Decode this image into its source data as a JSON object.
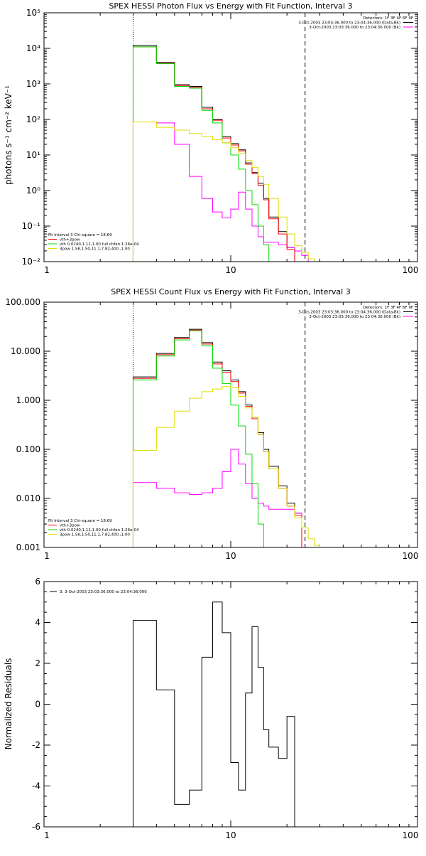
{
  "chart_data": [
    {
      "type": "line",
      "title": "SPEX HESSI Photon Flux vs Energy with Fit Function, Interval 3",
      "xlabel": "",
      "ylabel": "photons s⁻¹ cm⁻² keV⁻¹",
      "xscale": "log",
      "yscale": "log",
      "xlim": [
        1,
        100
      ],
      "ylim": [
        0.01,
        100000
      ],
      "x_ticks": [
        1,
        10,
        100
      ],
      "x_tick_labels": [
        "1",
        "10",
        "100"
      ],
      "y_ticks": [
        0.01,
        0.1,
        1,
        10,
        100,
        1000,
        10000,
        100000
      ],
      "y_tick_labels": [
        "10⁻²",
        "10⁻¹",
        "10⁰",
        "10¹",
        "10²",
        "10³",
        "10⁴",
        "10⁵"
      ],
      "vlines": [
        {
          "x": 3,
          "style": "dotted"
        },
        {
          "x": 25,
          "style": "dashed"
        }
      ],
      "legend_top_right": {
        "detectors": "Detectors: 1F 3F 4F 6F 9F",
        "entries": [
          {
            "text": "3-Oct-2003 23:03:36.000 to 23:04:36.000 (Data-Bk)",
            "color": "#000000"
          },
          {
            "text": "3-Oct-2003 23:03:36.000 to 23:04:36.000 (Bk)",
            "color": "#ff00ff"
          }
        ]
      },
      "legend_bottom_left": {
        "header": "Fit Interval 3   Chi-square = 18.69",
        "entries": [
          {
            "text": "vth+3pow",
            "color": "#ff0000"
          },
          {
            "text": "vth 0.0240,1.11,1.00  full chfan 1.26e-04",
            "color": "#00dd00"
          },
          {
            "text": "3pow 1.58,1.50,11.1,7.82,400.,1.00",
            "color": "#dddd00"
          }
        ]
      },
      "edges": [
        3.0,
        4.0,
        5.0,
        6.0,
        7.0,
        8.0,
        9.0,
        10.0,
        11.0,
        12.0,
        13.0,
        14.0,
        15.0,
        16.0,
        18.0,
        20.0,
        22.0,
        24.0,
        26.0,
        28.0,
        30.0
      ],
      "series": [
        {
          "name": "Data-Bk",
          "color": "#000000",
          "values": [
            12000,
            4000,
            950,
            850,
            220,
            100,
            33,
            21,
            14,
            6,
            3.2,
            1.6,
            0.6,
            0.18,
            0.07,
            0.025,
            null,
            null,
            null,
            null
          ]
        },
        {
          "name": "Bk",
          "color": "#ff00ff",
          "values": [
            85,
            80,
            20,
            2.5,
            0.6,
            0.25,
            0.17,
            0.3,
            0.9,
            0.3,
            0.1,
            0.05,
            0.035,
            0.035,
            0.03,
            0.025,
            0.02,
            0.015,
            null,
            null
          ]
        },
        {
          "name": "vth+3pow",
          "color": "#ff0000",
          "values": [
            11000,
            3800,
            900,
            800,
            200,
            95,
            30,
            19,
            13,
            5.5,
            3.0,
            1.4,
            0.55,
            0.16,
            0.06,
            0.022,
            null,
            null,
            null,
            null
          ]
        },
        {
          "name": "vth",
          "color": "#00dd00",
          "values": [
            11000,
            3700,
            850,
            760,
            180,
            80,
            22,
            10,
            4,
            1,
            0.4,
            0.1,
            0.03,
            0.008,
            null,
            null,
            null,
            null,
            null,
            null
          ]
        },
        {
          "name": "3pow",
          "color": "#dddd00",
          "values": [
            85,
            60,
            50,
            40,
            33,
            27,
            22,
            16,
            11,
            7,
            4.5,
            2.5,
            1.5,
            0.6,
            0.18,
            0.06,
            0.028,
            0.018,
            0.012,
            null
          ]
        }
      ]
    },
    {
      "type": "line",
      "title": "SPEX HESSI Count Flux vs Energy with Fit Function, Interval 3",
      "xlabel": "",
      "ylabel": "",
      "xscale": "log",
      "yscale": "log",
      "xlim": [
        1,
        100
      ],
      "ylim": [
        0.001,
        100
      ],
      "x_ticks": [
        1,
        10,
        100
      ],
      "x_tick_labels": [
        "1",
        "10",
        "100"
      ],
      "y_ticks": [
        0.001,
        0.01,
        0.1,
        1,
        10,
        100
      ],
      "y_tick_labels": [
        "0.001",
        "0.010",
        "0.100",
        "1.000",
        "10.000",
        "100.000"
      ],
      "vlines": [
        {
          "x": 3,
          "style": "dotted"
        },
        {
          "x": 25,
          "style": "dashed"
        }
      ],
      "legend_top_right": {
        "detectors": "Detectors: 1F 3F 4F 6F 9F",
        "entries": [
          {
            "text": "3-Oct-2003 23:03:36.000 to 23:04:36.000 (Data-Bk)",
            "color": "#000000"
          },
          {
            "text": "3-Oct-2003 23:03:36.000 to 23:04:36.000 (Bk)",
            "color": "#ff00ff"
          }
        ]
      },
      "legend_bottom_left": {
        "header": "Fit Interval 3   Chi-square = 18.69",
        "entries": [
          {
            "text": "vth+3pow",
            "color": "#ff0000"
          },
          {
            "text": "vth 0.0240,1.11,1.00  full chfan 1.26e-04",
            "color": "#00dd00"
          },
          {
            "text": "3pow 1.58,1.50,11.1,7.82,400.,1.00",
            "color": "#dddd00"
          }
        ]
      },
      "edges": [
        3.0,
        4.0,
        5.0,
        6.0,
        7.0,
        8.0,
        9.0,
        10.0,
        11.0,
        12.0,
        13.0,
        14.0,
        15.0,
        16.0,
        18.0,
        20.0,
        22.0,
        24.0,
        26.0,
        28.0,
        30.0
      ],
      "series": [
        {
          "name": "Data-Bk",
          "color": "#000000",
          "values": [
            3.0,
            9.0,
            19,
            28,
            15,
            6,
            4,
            2.6,
            1.5,
            0.8,
            0.45,
            0.22,
            0.1,
            0.045,
            0.018,
            0.008,
            0.005,
            null,
            null,
            null
          ]
        },
        {
          "name": "Bk",
          "color": "#ff00ff",
          "values": [
            0.021,
            0.016,
            0.013,
            0.012,
            0.013,
            0.016,
            0.035,
            0.1,
            0.05,
            0.02,
            0.01,
            0.008,
            0.007,
            0.006,
            0.006,
            0.006,
            0.005,
            null,
            null,
            null
          ]
        },
        {
          "name": "vth+3pow",
          "color": "#ff0000",
          "values": [
            2.8,
            8.5,
            18,
            27,
            14,
            5.5,
            3.7,
            2.4,
            1.4,
            0.75,
            0.42,
            0.2,
            0.09,
            0.04,
            0.016,
            0.007,
            0.0045,
            null,
            null,
            null
          ]
        },
        {
          "name": "vth",
          "color": "#00dd00",
          "values": [
            2.6,
            8.0,
            17,
            26,
            13,
            4.5,
            2.2,
            0.8,
            0.3,
            0.08,
            0.02,
            0.003,
            null,
            null,
            null,
            null,
            null,
            null,
            null,
            null
          ]
        },
        {
          "name": "3pow",
          "color": "#dddd00",
          "values": [
            0.095,
            0.28,
            0.6,
            1.1,
            1.5,
            1.7,
            1.9,
            1.8,
            1.2,
            0.7,
            0.45,
            0.2,
            0.09,
            0.04,
            0.016,
            0.007,
            0.004,
            0.0025,
            0.0015,
            0.0011
          ]
        }
      ]
    },
    {
      "type": "line",
      "title": "",
      "xlabel": "",
      "ylabel": "Normalized Residuals",
      "xscale": "log",
      "yscale": "linear",
      "xlim": [
        1,
        100
      ],
      "ylim": [
        -6,
        6
      ],
      "x_ticks": [
        1,
        10,
        100
      ],
      "x_tick_labels": [
        "1",
        "10",
        "100"
      ],
      "y_ticks": [
        -6,
        -4,
        -2,
        0,
        2,
        4,
        6
      ],
      "y_tick_labels": [
        "-6",
        "-4",
        "-2",
        "0",
        "2",
        "4",
        "6"
      ],
      "legend_top_left": {
        "entries": [
          {
            "text": "3.  3-Oct-2003 23:03:36.000 to 23:04:36.000",
            "color": "#000000"
          }
        ]
      },
      "edges": [
        3.0,
        4.0,
        5.0,
        6.0,
        7.0,
        8.0,
        9.0,
        10.0,
        11.0,
        12.0,
        13.0,
        14.0,
        15.0,
        16.0,
        18.0,
        20.0,
        22.0,
        24.0,
        26.0
      ],
      "series": [
        {
          "name": "3",
          "color": "#000000",
          "values": [
            4.1,
            0.7,
            -4.9,
            -4.2,
            2.3,
            5.0,
            3.5,
            -2.85,
            -4.2,
            0.55,
            3.8,
            1.8,
            -1.25,
            -2.1,
            -2.65,
            -0.6,
            null,
            null
          ]
        }
      ]
    }
  ]
}
